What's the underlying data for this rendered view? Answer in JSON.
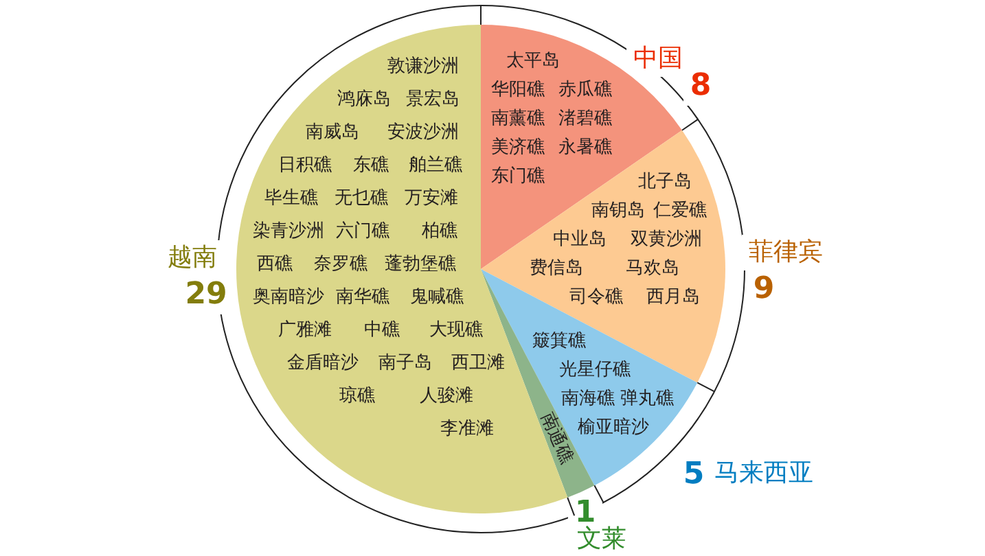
{
  "chart_data": {
    "type": "pie",
    "categories": [
      "中国",
      "菲律宾",
      "马来西亚",
      "文莱",
      "越南"
    ],
    "values": [
      8,
      9,
      5,
      1,
      29
    ],
    "colors": [
      "#f4937c",
      "#fdca92",
      "#8ecaeb",
      "#8db48a",
      "#dbd78a"
    ],
    "data_labels": true,
    "annotations": [
      "太平岛",
      "华阳礁",
      "赤瓜礁",
      "南薰礁",
      "渚碧礁",
      "永暑礁",
      "美济礁",
      "东门礁",
      "北子岛",
      "南钥岛",
      "仁爱礁",
      "中业岛",
      "费信岛",
      "双黄沙洲",
      "马欢岛",
      "司令礁",
      "西月岛",
      "簸箕礁",
      "光星仔礁",
      "南海礁",
      "榆亚暗沙",
      "弹丸礁",
      "南通礁",
      "敦谦沙洲",
      "景宏岛",
      "鸿庥岛",
      "南威岛",
      "安波沙洲",
      "日积礁",
      "东礁",
      "舶兰礁",
      "毕生礁",
      "无乜礁",
      "万安滩",
      "柏礁",
      "染青沙洲",
      "六门礁",
      "西礁",
      "奈罗礁",
      "蓬勃堡礁",
      "南华礁",
      "鬼喊礁",
      "奥南暗沙",
      "广雅滩",
      "中礁",
      "大现礁",
      "金盾暗沙",
      "南子岛",
      "西卫滩",
      "琼礁",
      "人骏滩",
      "李准滩"
    ]
  }
}
